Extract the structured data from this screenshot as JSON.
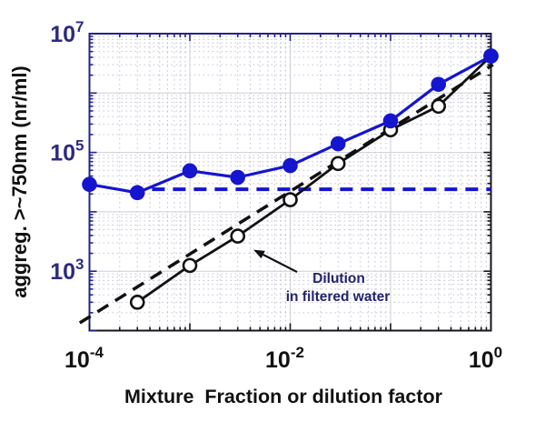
{
  "chart_data": {
    "type": "line",
    "title": "",
    "xlabel": "Mixture  Fraction or dilution factor",
    "ylabel": "aggreg. >~750nm (nr/ml)",
    "x_scale": "log",
    "y_scale": "log",
    "xlim": [
      0.0001,
      1
    ],
    "ylim": [
      100,
      10000000
    ],
    "grid": {
      "major": true,
      "minor": true
    },
    "legend": "none",
    "colors": {
      "blue_series": "#1515cf",
      "black_series": "#111111",
      "y_tick_label": "#2b2b80",
      "x_tick_label": "#111111",
      "frame_top_left": "#23238c",
      "frame_bottom_right": "#16161e",
      "annotation_text": "#23236b"
    },
    "x_ticks": [
      {
        "base": "10",
        "exp": "-4",
        "value": 0.0001
      },
      {
        "base": "10",
        "exp": "-2",
        "value": 0.01
      },
      {
        "base": "10",
        "exp": "0",
        "value": 1
      }
    ],
    "y_ticks": [
      {
        "base": "10",
        "exp": "7",
        "value": 10000000
      },
      {
        "base": "10",
        "exp": "5",
        "value": 100000
      },
      {
        "base": "10",
        "exp": "3",
        "value": 1000
      }
    ],
    "series": [
      {
        "name": "baseline-level-dashed-blue",
        "style": "dashed",
        "marker": "none",
        "color": "#1515cf",
        "width": 4,
        "x": [
          0.00042,
          1.0
        ],
        "y": [
          24000,
          24000
        ]
      },
      {
        "name": "proportional-dilution-reference-dashed-black",
        "style": "dashed",
        "marker": "none",
        "color": "#111111",
        "width": 3.5,
        "x": [
          8e-05,
          1.05
        ],
        "y": [
          135,
          3000000
        ]
      },
      {
        "name": "dilution-in-filtered-water",
        "style": "solid",
        "marker": "open-circle",
        "color": "#111111",
        "width": 2.8,
        "x": [
          0.0003,
          0.001,
          0.003,
          0.01,
          0.03,
          0.1,
          0.3,
          1.0
        ],
        "y": [
          300,
          1250,
          3900,
          16000,
          65000,
          240000,
          600000,
          4200000
        ]
      },
      {
        "name": "mixture-aggregates",
        "style": "solid",
        "marker": "filled-circle",
        "color": "#1515cf",
        "width": 3.2,
        "x": [
          0.0001,
          0.0003,
          0.001,
          0.003,
          0.01,
          0.03,
          0.1,
          0.3,
          1.0
        ],
        "y": [
          29000,
          21000,
          49000,
          38000,
          60000,
          140000,
          340000,
          1400000,
          4200000
        ]
      }
    ],
    "annotation": {
      "line1": "Dilution",
      "line2": "in filtered water",
      "color": "#23236b",
      "arrow_tip_xy": [
        0.0043,
        2300
      ],
      "arrow_tail_xy": [
        0.0117,
        970
      ]
    }
  }
}
